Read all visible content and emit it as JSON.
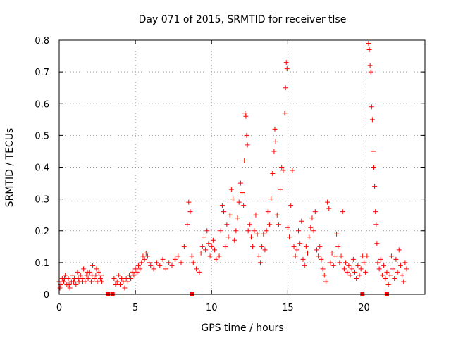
{
  "chart_data": {
    "type": "scatter",
    "title": "Day 071 of 2015, SRMTID for receiver tlse",
    "xlabel": "GPS time / hours",
    "ylabel": "SRMTID / TECUs",
    "xlim": [
      0,
      24
    ],
    "ylim": [
      0,
      0.8
    ],
    "xticks": [
      0,
      5,
      10,
      15,
      20
    ],
    "yticks": [
      0,
      0.1,
      0.2,
      0.3,
      0.4,
      0.5,
      0.6,
      0.7,
      0.8
    ],
    "xtick_labels": [
      "0",
      "5",
      "10",
      "15",
      "20"
    ],
    "ytick_labels": [
      "0",
      "0.1",
      "0.2",
      "0.3",
      "0.4",
      "0.5",
      "0.6",
      "0.7",
      "0.8"
    ],
    "grid": true,
    "marker": "+",
    "color": "#ff0000",
    "series": [
      {
        "name": "SRMTID",
        "gaps_at_zero_x": [
          3.2,
          3.5,
          8.7,
          19.9,
          21.5
        ],
        "points": [
          [
            0.0,
            0.04
          ],
          [
            0.1,
            0.03
          ],
          [
            0.2,
            0.05
          ],
          [
            0.3,
            0.04
          ],
          [
            0.4,
            0.06
          ],
          [
            0.5,
            0.03
          ],
          [
            0.6,
            0.05
          ],
          [
            0.7,
            0.02
          ],
          [
            0.8,
            0.04
          ],
          [
            0.9,
            0.06
          ],
          [
            1.0,
            0.05
          ],
          [
            1.1,
            0.03
          ],
          [
            1.2,
            0.07
          ],
          [
            1.3,
            0.04
          ],
          [
            1.4,
            0.06
          ],
          [
            1.5,
            0.05
          ],
          [
            1.6,
            0.08
          ],
          [
            1.7,
            0.04
          ],
          [
            1.8,
            0.06
          ],
          [
            1.9,
            0.05
          ],
          [
            2.0,
            0.07
          ],
          [
            2.1,
            0.04
          ],
          [
            2.2,
            0.09
          ],
          [
            2.3,
            0.05
          ],
          [
            2.4,
            0.06
          ],
          [
            2.5,
            0.04
          ],
          [
            2.6,
            0.07
          ],
          [
            2.7,
            0.05
          ],
          [
            2.8,
            0.04
          ],
          [
            0.05,
            0.02
          ],
          [
            0.35,
            0.05
          ],
          [
            0.65,
            0.03
          ],
          [
            0.95,
            0.04
          ],
          [
            1.25,
            0.05
          ],
          [
            1.55,
            0.04
          ],
          [
            1.85,
            0.07
          ],
          [
            2.15,
            0.06
          ],
          [
            2.45,
            0.08
          ],
          [
            2.75,
            0.06
          ],
          [
            3.6,
            0.05
          ],
          [
            3.7,
            0.03
          ],
          [
            3.8,
            0.04
          ],
          [
            3.9,
            0.06
          ],
          [
            4.0,
            0.03
          ],
          [
            4.1,
            0.05
          ],
          [
            4.2,
            0.04
          ],
          [
            4.3,
            0.02
          ],
          [
            4.4,
            0.05
          ],
          [
            4.5,
            0.04
          ],
          [
            4.6,
            0.06
          ],
          [
            4.7,
            0.05
          ],
          [
            4.8,
            0.07
          ],
          [
            4.9,
            0.06
          ],
          [
            5.0,
            0.08
          ],
          [
            5.1,
            0.07
          ],
          [
            5.2,
            0.09
          ],
          [
            5.3,
            0.08
          ],
          [
            5.4,
            0.1
          ],
          [
            5.5,
            0.12
          ],
          [
            5.6,
            0.11
          ],
          [
            5.7,
            0.13
          ],
          [
            5.8,
            0.12
          ],
          [
            5.9,
            0.1
          ],
          [
            6.0,
            0.09
          ],
          [
            6.2,
            0.08
          ],
          [
            6.4,
            0.1
          ],
          [
            6.6,
            0.09
          ],
          [
            6.8,
            0.11
          ],
          [
            7.0,
            0.08
          ],
          [
            7.2,
            0.1
          ],
          [
            7.4,
            0.09
          ],
          [
            7.6,
            0.11
          ],
          [
            7.8,
            0.12
          ],
          [
            8.0,
            0.1
          ],
          [
            8.2,
            0.15
          ],
          [
            8.4,
            0.22
          ],
          [
            8.5,
            0.29
          ],
          [
            8.6,
            0.26
          ],
          [
            8.7,
            0.12
          ],
          [
            8.8,
            0.1
          ],
          [
            9.0,
            0.08
          ],
          [
            9.2,
            0.07
          ],
          [
            9.3,
            0.13
          ],
          [
            9.4,
            0.15
          ],
          [
            9.5,
            0.18
          ],
          [
            9.6,
            0.14
          ],
          [
            9.7,
            0.2
          ],
          [
            9.8,
            0.16
          ],
          [
            9.9,
            0.12
          ],
          [
            10.0,
            0.15
          ],
          [
            10.1,
            0.17
          ],
          [
            10.2,
            0.14
          ],
          [
            10.3,
            0.11
          ],
          [
            10.5,
            0.12
          ],
          [
            10.6,
            0.2
          ],
          [
            10.7,
            0.28
          ],
          [
            10.8,
            0.26
          ],
          [
            10.9,
            0.15
          ],
          [
            11.0,
            0.22
          ],
          [
            11.1,
            0.18
          ],
          [
            11.2,
            0.25
          ],
          [
            11.3,
            0.33
          ],
          [
            11.4,
            0.3
          ],
          [
            11.5,
            0.17
          ],
          [
            11.6,
            0.2
          ],
          [
            11.7,
            0.24
          ],
          [
            11.8,
            0.29
          ],
          [
            11.9,
            0.35
          ],
          [
            12.0,
            0.32
          ],
          [
            12.1,
            0.28
          ],
          [
            12.15,
            0.42
          ],
          [
            12.2,
            0.57
          ],
          [
            12.25,
            0.56
          ],
          [
            12.3,
            0.5
          ],
          [
            12.35,
            0.47
          ],
          [
            12.4,
            0.2
          ],
          [
            12.5,
            0.22
          ],
          [
            12.6,
            0.18
          ],
          [
            12.7,
            0.15
          ],
          [
            12.8,
            0.2
          ],
          [
            12.9,
            0.25
          ],
          [
            13.0,
            0.19
          ],
          [
            13.1,
            0.12
          ],
          [
            13.2,
            0.1
          ],
          [
            13.3,
            0.15
          ],
          [
            13.4,
            0.19
          ],
          [
            13.5,
            0.14
          ],
          [
            13.6,
            0.2
          ],
          [
            13.7,
            0.26
          ],
          [
            13.8,
            0.22
          ],
          [
            13.9,
            0.3
          ],
          [
            14.0,
            0.38
          ],
          [
            14.1,
            0.45
          ],
          [
            14.15,
            0.52
          ],
          [
            14.2,
            0.48
          ],
          [
            14.3,
            0.25
          ],
          [
            14.4,
            0.22
          ],
          [
            14.5,
            0.33
          ],
          [
            14.6,
            0.4
          ],
          [
            14.7,
            0.39
          ],
          [
            14.8,
            0.57
          ],
          [
            14.85,
            0.65
          ],
          [
            14.9,
            0.73
          ],
          [
            14.95,
            0.71
          ],
          [
            15.0,
            0.21
          ],
          [
            15.1,
            0.18
          ],
          [
            15.2,
            0.28
          ],
          [
            15.3,
            0.39
          ],
          [
            15.4,
            0.15
          ],
          [
            15.5,
            0.12
          ],
          [
            15.6,
            0.14
          ],
          [
            15.7,
            0.2
          ],
          [
            15.8,
            0.16
          ],
          [
            15.9,
            0.23
          ],
          [
            16.0,
            0.11
          ],
          [
            16.1,
            0.09
          ],
          [
            16.2,
            0.15
          ],
          [
            16.3,
            0.13
          ],
          [
            16.4,
            0.18
          ],
          [
            16.5,
            0.21
          ],
          [
            16.6,
            0.24
          ],
          [
            16.7,
            0.2
          ],
          [
            16.8,
            0.26
          ],
          [
            16.9,
            0.14
          ],
          [
            17.0,
            0.12
          ],
          [
            17.1,
            0.15
          ],
          [
            17.2,
            0.11
          ],
          [
            17.3,
            0.08
          ],
          [
            17.4,
            0.06
          ],
          [
            17.5,
            0.04
          ],
          [
            17.6,
            0.29
          ],
          [
            17.7,
            0.27
          ],
          [
            17.8,
            0.1
          ],
          [
            17.9,
            0.13
          ],
          [
            18.0,
            0.09
          ],
          [
            18.1,
            0.12
          ],
          [
            18.2,
            0.19
          ],
          [
            18.3,
            0.15
          ],
          [
            18.4,
            0.1
          ],
          [
            18.5,
            0.12
          ],
          [
            18.6,
            0.26
          ],
          [
            18.7,
            0.08
          ],
          [
            18.8,
            0.1
          ],
          [
            18.9,
            0.07
          ],
          [
            19.0,
            0.09
          ],
          [
            19.1,
            0.06
          ],
          [
            19.2,
            0.08
          ],
          [
            19.3,
            0.11
          ],
          [
            19.4,
            0.07
          ],
          [
            19.5,
            0.05
          ],
          [
            19.6,
            0.09
          ],
          [
            19.7,
            0.06
          ],
          [
            19.8,
            0.08
          ],
          [
            19.9,
            0.12
          ],
          [
            20.0,
            0.1
          ],
          [
            20.1,
            0.07
          ],
          [
            20.2,
            0.12
          ],
          [
            20.3,
            0.79
          ],
          [
            20.35,
            0.77
          ],
          [
            20.4,
            0.72
          ],
          [
            20.45,
            0.7
          ],
          [
            20.5,
            0.59
          ],
          [
            20.55,
            0.55
          ],
          [
            20.6,
            0.45
          ],
          [
            20.65,
            0.4
          ],
          [
            20.7,
            0.34
          ],
          [
            20.75,
            0.26
          ],
          [
            20.8,
            0.22
          ],
          [
            20.85,
            0.16
          ],
          [
            20.9,
            0.1
          ],
          [
            21.0,
            0.08
          ],
          [
            21.1,
            0.11
          ],
          [
            21.2,
            0.06
          ],
          [
            21.3,
            0.09
          ],
          [
            21.4,
            0.05
          ],
          [
            21.5,
            0.07
          ],
          [
            21.6,
            0.03
          ],
          [
            21.7,
            0.06
          ],
          [
            21.8,
            0.12
          ],
          [
            21.9,
            0.08
          ],
          [
            22.0,
            0.05
          ],
          [
            22.1,
            0.11
          ],
          [
            22.2,
            0.07
          ],
          [
            22.3,
            0.14
          ],
          [
            22.4,
            0.09
          ],
          [
            22.5,
            0.06
          ],
          [
            22.6,
            0.04
          ],
          [
            22.7,
            0.1
          ],
          [
            22.8,
            0.08
          ]
        ]
      }
    ]
  }
}
